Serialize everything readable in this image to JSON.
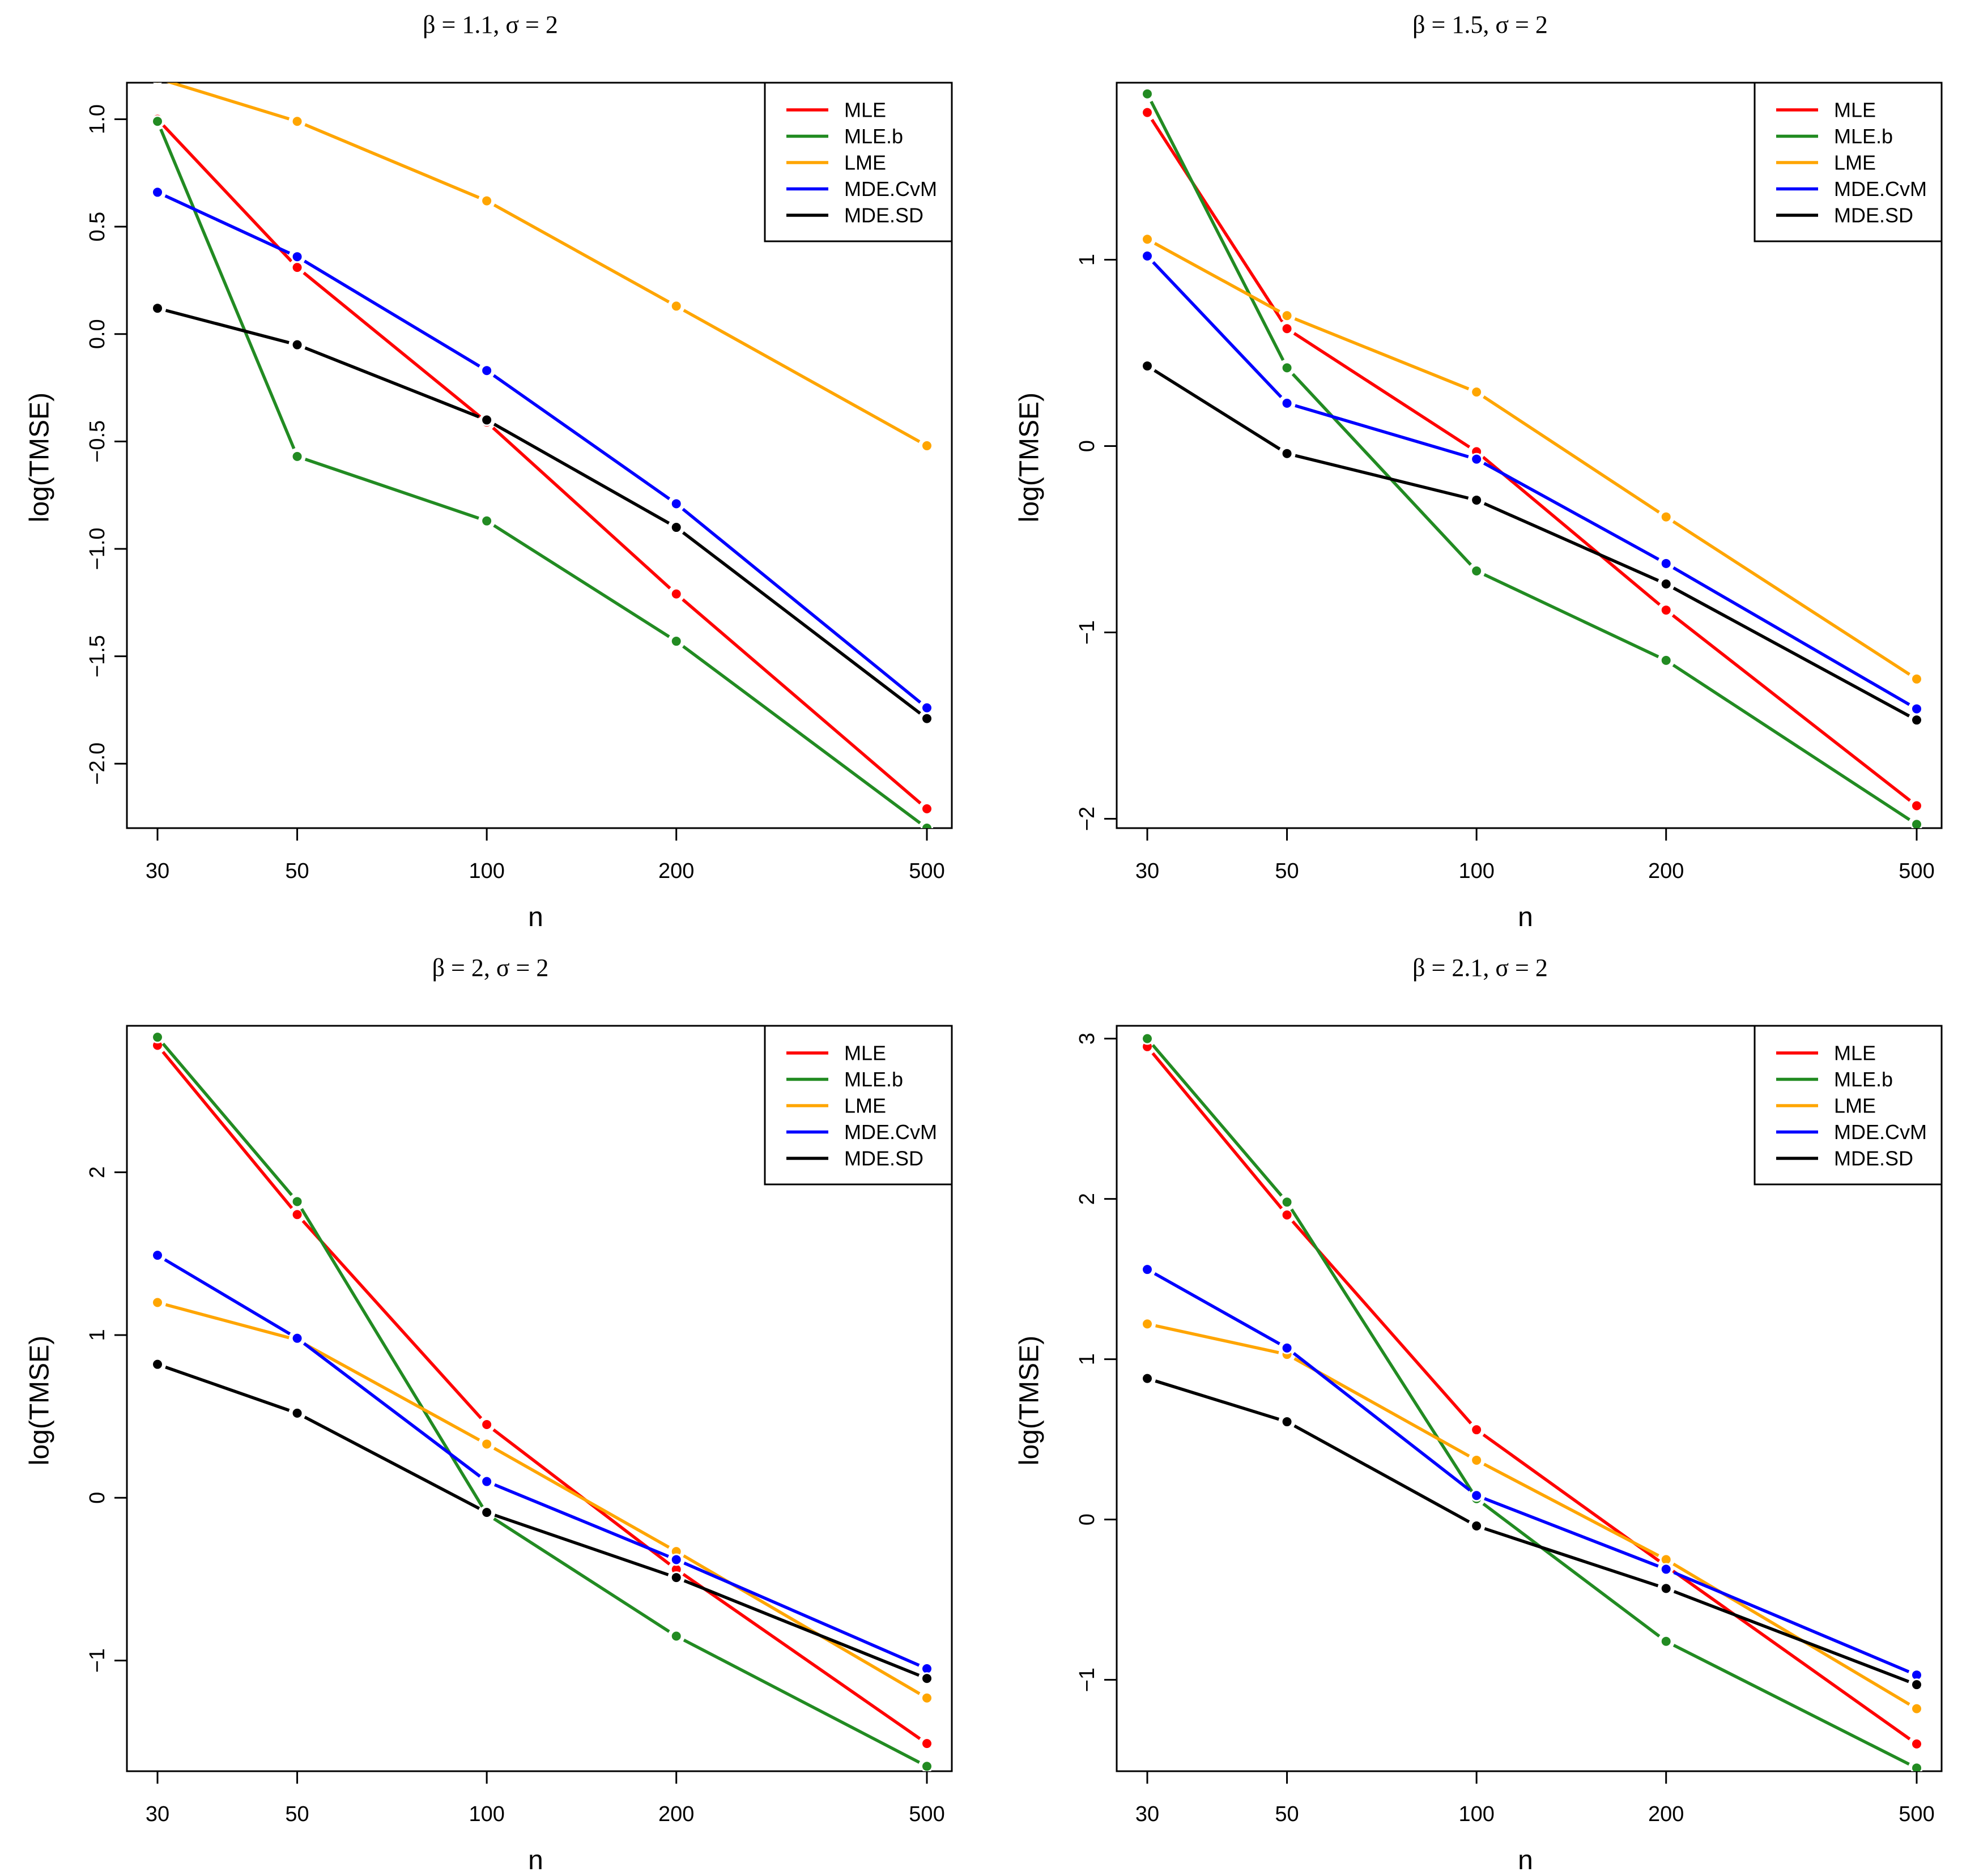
{
  "chart_data": [
    {
      "type": "line",
      "title": "β = 1.1, σ = 2",
      "xlabel": "n",
      "ylabel": "log(TMSE)",
      "x": [
        30,
        50,
        100,
        200,
        500
      ],
      "x_tick_labels": [
        "30",
        "50",
        "100",
        "200",
        "500"
      ],
      "y_ticks": [
        -2.0,
        -1.5,
        -1.0,
        -0.5,
        0.0,
        0.5,
        1.0
      ],
      "y_tick_labels": [
        "−2.0",
        "−1.5",
        "−1.0",
        "−0.5",
        "0.0",
        "0.5",
        "1.0"
      ],
      "ylim": [
        -2.3,
        1.17
      ],
      "legend_position": "top-right",
      "series": [
        {
          "name": "MLE",
          "color": "#FF0000",
          "values": [
            1.0,
            0.31,
            -0.41,
            -1.21,
            -2.21
          ]
        },
        {
          "name": "MLE.b",
          "color": "#228B22",
          "values": [
            0.99,
            -0.57,
            -0.87,
            -1.43,
            -2.3
          ]
        },
        {
          "name": "LME",
          "color": "#FFA500",
          "values": [
            1.19,
            0.99,
            0.62,
            0.13,
            -0.52
          ]
        },
        {
          "name": "MDE.CvM",
          "color": "#0000FF",
          "values": [
            0.66,
            0.36,
            -0.17,
            -0.79,
            -1.74
          ]
        },
        {
          "name": "MDE.SD",
          "color": "#000000",
          "values": [
            0.12,
            -0.05,
            -0.4,
            -0.9,
            -1.79
          ]
        }
      ]
    },
    {
      "type": "line",
      "title": "β = 1.5, σ = 2",
      "xlabel": "n",
      "ylabel": "log(TMSE)",
      "x": [
        30,
        50,
        100,
        200,
        500
      ],
      "x_tick_labels": [
        "30",
        "50",
        "100",
        "200",
        "500"
      ],
      "y_ticks": [
        -2,
        -1,
        0,
        1
      ],
      "y_tick_labels": [
        "−2",
        "−1",
        "0",
        "1"
      ],
      "ylim": [
        -2.05,
        1.95
      ],
      "legend_position": "top-right",
      "series": [
        {
          "name": "MLE",
          "color": "#FF0000",
          "values": [
            1.79,
            0.63,
            -0.03,
            -0.88,
            -1.93
          ]
        },
        {
          "name": "MLE.b",
          "color": "#228B22",
          "values": [
            1.89,
            0.42,
            -0.67,
            -1.15,
            -2.03
          ]
        },
        {
          "name": "LME",
          "color": "#FFA500",
          "values": [
            1.11,
            0.7,
            0.29,
            -0.38,
            -1.25
          ]
        },
        {
          "name": "MDE.CvM",
          "color": "#0000FF",
          "values": [
            1.02,
            0.23,
            -0.07,
            -0.63,
            -1.41
          ]
        },
        {
          "name": "MDE.SD",
          "color": "#000000",
          "values": [
            0.43,
            -0.04,
            -0.29,
            -0.74,
            -1.47
          ]
        }
      ]
    },
    {
      "type": "line",
      "title": "β = 2, σ = 2",
      "xlabel": "n",
      "ylabel": "log(TMSE)",
      "x": [
        30,
        50,
        100,
        200,
        500
      ],
      "x_tick_labels": [
        "30",
        "50",
        "100",
        "200",
        "500"
      ],
      "y_ticks": [
        -1,
        0,
        1,
        2
      ],
      "y_tick_labels": [
        "−1",
        "0",
        "1",
        "2"
      ],
      "ylim": [
        -1.68,
        2.9
      ],
      "legend_position": "top-right",
      "series": [
        {
          "name": "MLE",
          "color": "#FF0000",
          "values": [
            2.78,
            1.74,
            0.45,
            -0.44,
            -1.51
          ]
        },
        {
          "name": "MLE.b",
          "color": "#228B22",
          "values": [
            2.83,
            1.82,
            -0.1,
            -0.85,
            -1.65
          ]
        },
        {
          "name": "LME",
          "color": "#FFA500",
          "values": [
            1.2,
            0.97,
            0.33,
            -0.33,
            -1.23
          ]
        },
        {
          "name": "MDE.CvM",
          "color": "#0000FF",
          "values": [
            1.49,
            0.98,
            0.1,
            -0.38,
            -1.05
          ]
        },
        {
          "name": "MDE.SD",
          "color": "#000000",
          "values": [
            0.82,
            0.52,
            -0.09,
            -0.49,
            -1.11
          ]
        }
      ]
    },
    {
      "type": "line",
      "title": "β = 2.1, σ = 2",
      "xlabel": "n",
      "ylabel": "log(TMSE)",
      "x": [
        30,
        50,
        100,
        200,
        500
      ],
      "x_tick_labels": [
        "30",
        "50",
        "100",
        "200",
        "500"
      ],
      "y_ticks": [
        -1,
        0,
        1,
        2,
        3
      ],
      "y_tick_labels": [
        "−1",
        "0",
        "1",
        "2",
        "3"
      ],
      "ylim": [
        -1.57,
        3.08
      ],
      "legend_position": "top-right",
      "series": [
        {
          "name": "MLE",
          "color": "#FF0000",
          "values": [
            2.95,
            1.9,
            0.56,
            -0.29,
            -1.4
          ]
        },
        {
          "name": "MLE.b",
          "color": "#228B22",
          "values": [
            3.0,
            1.98,
            0.13,
            -0.76,
            -1.55
          ]
        },
        {
          "name": "LME",
          "color": "#FFA500",
          "values": [
            1.22,
            1.03,
            0.37,
            -0.25,
            -1.18
          ]
        },
        {
          "name": "MDE.CvM",
          "color": "#0000FF",
          "values": [
            1.56,
            1.07,
            0.15,
            -0.31,
            -0.97
          ]
        },
        {
          "name": "MDE.SD",
          "color": "#000000",
          "values": [
            0.88,
            0.61,
            -0.04,
            -0.43,
            -1.03
          ]
        }
      ]
    }
  ]
}
